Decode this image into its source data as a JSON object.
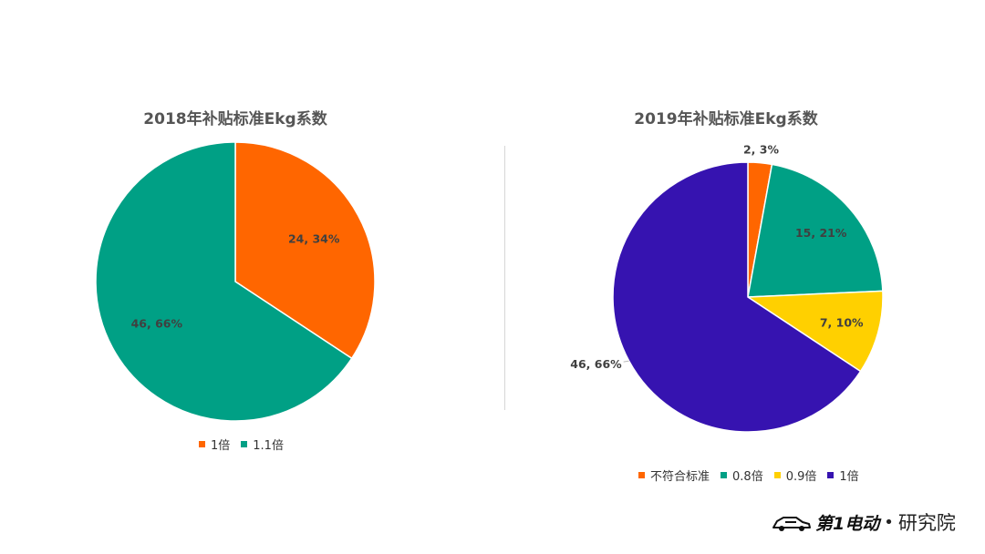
{
  "chart_data": [
    {
      "type": "pie",
      "title": "2018年补贴标准Ekg系数",
      "slices": [
        {
          "name": "1倍",
          "value": 24,
          "percent": "34%",
          "color": "#FF6600"
        },
        {
          "name": "1.1倍",
          "value": 46,
          "percent": "66%",
          "color": "#00A085"
        }
      ],
      "legend_position": "bottom"
    },
    {
      "type": "pie",
      "title": "2019年补贴标准Ekg系数",
      "slices": [
        {
          "name": "不符合标准",
          "value": 2,
          "percent": "3%",
          "color": "#FF6600"
        },
        {
          "name": "0.8倍",
          "value": 15,
          "percent": "21%",
          "color": "#00A085"
        },
        {
          "name": "0.9倍",
          "value": 7,
          "percent": "10%",
          "color": "#FFD000"
        },
        {
          "name": "1倍",
          "value": 46,
          "percent": "66%",
          "color": "#3613B0"
        }
      ],
      "legend_position": "bottom"
    }
  ],
  "branding": {
    "logo_name": "第1电动",
    "logo_suffix": "研究院",
    "logo_separator": "•"
  }
}
